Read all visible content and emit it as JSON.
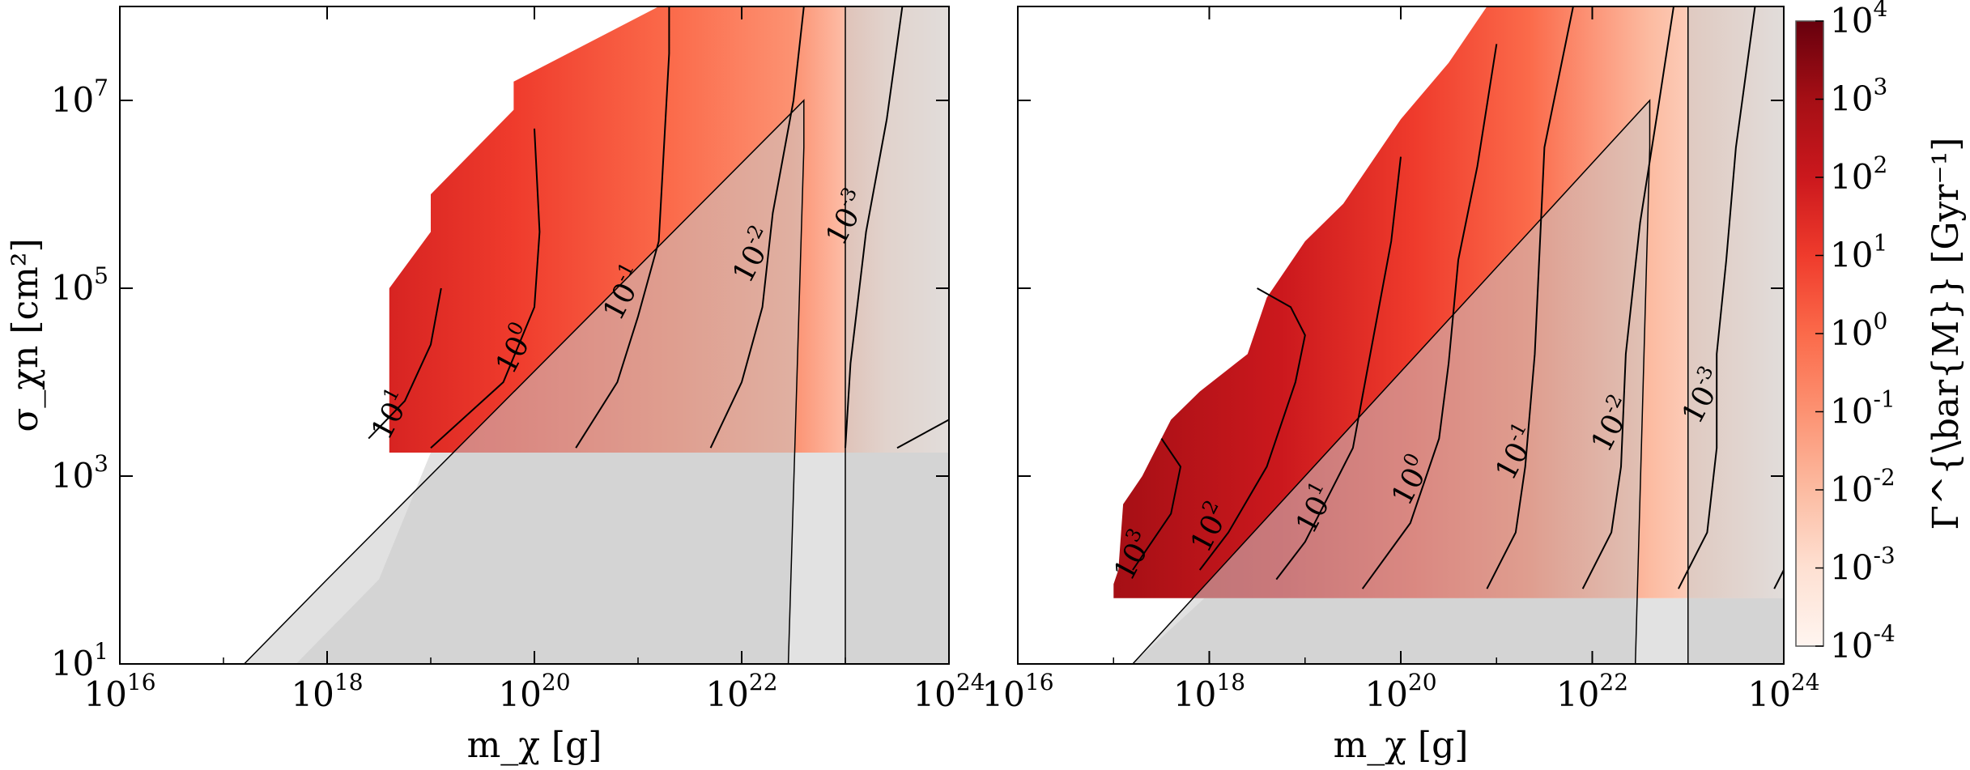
{
  "chart_data": [
    {
      "type": "heatmap",
      "panel": "left",
      "xlabel": "m_χ [g]",
      "ylabel": "σ_χn [cm²]",
      "x_scale": "log",
      "y_scale": "log",
      "xlim": [
        1e+16,
        1e+24
      ],
      "ylim": [
        10,
        100000000.0
      ],
      "x_ticks": [
        {
          "base": "10",
          "exp": "16"
        },
        {
          "base": "10",
          "exp": "18"
        },
        {
          "base": "10",
          "exp": "20"
        },
        {
          "base": "10",
          "exp": "22"
        },
        {
          "base": "10",
          "exp": "24"
        }
      ],
      "y_ticks": [
        {
          "base": "10",
          "exp": "1"
        },
        {
          "base": "10",
          "exp": "3"
        },
        {
          "base": "10",
          "exp": "5"
        },
        {
          "base": "10",
          "exp": "7"
        }
      ],
      "region_boundary": [
        [
          18.0,
          3.25
        ],
        [
          18.6,
          3.25
        ],
        [
          18.6,
          5.0
        ],
        [
          19.0,
          5.6
        ],
        [
          19.0,
          6.0
        ],
        [
          19.8,
          6.9
        ],
        [
          19.8,
          7.2
        ],
        [
          21.2,
          8.0
        ],
        [
          24.0,
          8.0
        ],
        [
          24.0,
          3.25
        ]
      ],
      "contours": [
        {
          "label_base": "10",
          "label_exp": "1",
          "points": [
            [
              18.4,
              3.4
            ],
            [
              18.75,
              3.8
            ],
            [
              19.0,
              4.4
            ],
            [
              19.1,
              5.0
            ]
          ],
          "label_at": [
            18.7,
            3.6
          ]
        },
        {
          "label_base": "10",
          "label_exp": "0",
          "points": [
            [
              19.0,
              3.3
            ],
            [
              19.7,
              4.0
            ],
            [
              20.0,
              4.8
            ],
            [
              20.05,
              5.6
            ],
            [
              20.0,
              6.7
            ]
          ],
          "label_at": [
            19.9,
            4.3
          ]
        },
        {
          "label_base": "10",
          "label_exp": "-1",
          "points": [
            [
              20.4,
              3.3
            ],
            [
              20.8,
              4.0
            ],
            [
              21.0,
              4.7
            ],
            [
              21.2,
              5.5
            ],
            [
              21.3,
              7.5
            ],
            [
              21.3,
              8.0
            ]
          ],
          "label_at": [
            20.95,
            4.9
          ]
        },
        {
          "label_base": "10",
          "label_exp": "-2",
          "points": [
            [
              21.7,
              3.3
            ],
            [
              22.0,
              4.0
            ],
            [
              22.2,
              4.8
            ],
            [
              22.3,
              5.8
            ],
            [
              22.5,
              7.0
            ],
            [
              22.6,
              8.0
            ]
          ],
          "label_at": [
            22.2,
            5.3
          ]
        },
        {
          "label_base": "10",
          "label_exp": "-3",
          "points": [
            [
              23.0,
              3.3
            ],
            [
              23.05,
              4.2
            ],
            [
              23.2,
              5.6
            ],
            [
              23.4,
              6.8
            ],
            [
              23.55,
              8.0
            ]
          ],
          "label_at": [
            23.1,
            5.7
          ]
        },
        {
          "points": [
            [
              23.5,
              3.3
            ],
            [
              24.0,
              3.6
            ]
          ]
        }
      ],
      "excluded_regions": [
        {
          "name": "constraint-band",
          "points": [
            [
              23.0,
              1.0
            ],
            [
              23.0,
              8.0
            ],
            [
              24.0,
              8.0
            ],
            [
              24.0,
              1.0
            ]
          ]
        },
        {
          "name": "constraint-wedge",
          "points": [
            [
              17.2,
              1.0
            ],
            [
              18.0,
              1.9
            ],
            [
              22.6,
              7.0
            ],
            [
              22.6,
              6.5
            ],
            [
              22.45,
              1.0
            ]
          ]
        },
        {
          "name": "constraint-floor",
          "points": [
            [
              17.7,
              1.0
            ],
            [
              18.5,
              1.9
            ],
            [
              19.0,
              3.25
            ],
            [
              24.0,
              3.25
            ],
            [
              24.0,
              1.0
            ]
          ]
        }
      ]
    },
    {
      "type": "heatmap",
      "panel": "right",
      "xlabel": "m_χ [g]",
      "x_scale": "log",
      "y_scale": "log",
      "xlim": [
        1e+16,
        1e+24
      ],
      "ylim": [
        10,
        100000000.0
      ],
      "x_ticks": [
        {
          "base": "10",
          "exp": "16"
        },
        {
          "base": "10",
          "exp": "18"
        },
        {
          "base": "10",
          "exp": "20"
        },
        {
          "base": "10",
          "exp": "22"
        },
        {
          "base": "10",
          "exp": "24"
        }
      ],
      "region_boundary": [
        [
          17.0,
          1.7
        ],
        [
          17.0,
          1.85
        ],
        [
          17.05,
          2.0
        ],
        [
          17.1,
          2.7
        ],
        [
          17.3,
          3.0
        ],
        [
          17.4,
          3.2
        ],
        [
          17.6,
          3.6
        ],
        [
          17.9,
          3.9
        ],
        [
          18.4,
          4.3
        ],
        [
          18.6,
          4.9
        ],
        [
          19.0,
          5.5
        ],
        [
          19.4,
          5.9
        ],
        [
          20.0,
          6.8
        ],
        [
          20.5,
          7.4
        ],
        [
          20.9,
          8.0
        ],
        [
          24.0,
          8.0
        ],
        [
          24.0,
          1.7
        ]
      ],
      "contours": [
        {
          "label_base": "10",
          "label_exp": "3",
          "points": [
            [
              17.2,
              2.0
            ],
            [
              17.6,
              2.6
            ],
            [
              17.7,
              3.1
            ],
            [
              17.5,
              3.4
            ]
          ],
          "label_at": [
            17.3,
            2.1
          ]
        },
        {
          "label_base": "10",
          "label_exp": "2",
          "points": [
            [
              17.9,
              2.0
            ],
            [
              18.2,
              2.4
            ],
            [
              18.6,
              3.1
            ],
            [
              18.9,
              4.0
            ],
            [
              19.0,
              4.5
            ],
            [
              18.85,
              4.8
            ],
            [
              18.5,
              5.0
            ]
          ],
          "label_at": [
            18.1,
            2.4
          ]
        },
        {
          "label_base": "10",
          "label_exp": "1",
          "points": [
            [
              18.7,
              1.9
            ],
            [
              19.0,
              2.3
            ],
            [
              19.5,
              3.3
            ],
            [
              19.7,
              4.4
            ],
            [
              19.9,
              5.5
            ],
            [
              20.0,
              6.4
            ]
          ],
          "label_at": [
            19.2,
            2.6
          ]
        },
        {
          "label_base": "10",
          "label_exp": "0",
          "points": [
            [
              19.6,
              1.8
            ],
            [
              20.1,
              2.5
            ],
            [
              20.4,
              3.4
            ],
            [
              20.5,
              4.2
            ],
            [
              20.6,
              5.3
            ],
            [
              20.8,
              6.3
            ],
            [
              21.0,
              7.6
            ]
          ],
          "label_at": [
            20.2,
            2.9
          ]
        },
        {
          "label_base": "10",
          "label_exp": "-1",
          "points": [
            [
              20.9,
              1.8
            ],
            [
              21.2,
              2.4
            ],
            [
              21.3,
              3.1
            ],
            [
              21.4,
              4.3
            ],
            [
              21.5,
              6.5
            ],
            [
              21.8,
              8.0
            ]
          ],
          "label_at": [
            21.3,
            3.2
          ]
        },
        {
          "label_base": "10",
          "label_exp": "-2",
          "points": [
            [
              21.9,
              1.8
            ],
            [
              22.2,
              2.4
            ],
            [
              22.3,
              3.1
            ],
            [
              22.35,
              4.3
            ],
            [
              22.5,
              5.7
            ],
            [
              22.7,
              7.0
            ],
            [
              22.85,
              8.0
            ]
          ],
          "label_at": [
            22.3,
            3.5
          ]
        },
        {
          "label_base": "10",
          "label_exp": "-3",
          "points": [
            [
              22.9,
              1.8
            ],
            [
              23.2,
              2.4
            ],
            [
              23.3,
              3.3
            ],
            [
              23.3,
              4.3
            ],
            [
              23.4,
              5.3
            ],
            [
              23.5,
              6.5
            ],
            [
              23.7,
              8.0
            ]
          ],
          "label_at": [
            23.25,
            3.8
          ]
        },
        {
          "points": [
            [
              23.9,
              1.8
            ],
            [
              24.0,
              2.0
            ]
          ]
        }
      ],
      "excluded_regions": [
        {
          "name": "constraint-band",
          "points": [
            [
              23.0,
              1.0
            ],
            [
              23.0,
              8.0
            ],
            [
              24.0,
              8.0
            ],
            [
              24.0,
              1.0
            ]
          ]
        },
        {
          "name": "constraint-wedge",
          "points": [
            [
              17.2,
              1.0
            ],
            [
              22.6,
              7.0
            ],
            [
              22.6,
              6.5
            ],
            [
              22.45,
              1.0
            ]
          ]
        },
        {
          "name": "constraint-floor",
          "points": [
            [
              17.2,
              1.0
            ],
            [
              17.95,
              1.7
            ],
            [
              24.0,
              1.7
            ],
            [
              24.0,
              1.0
            ]
          ]
        }
      ]
    }
  ],
  "colorbar": {
    "label": "Γ^{\\bar{M}} [Gyr⁻¹]",
    "scale": "log",
    "range": [
      0.0001,
      10000.0
    ],
    "colors": [
      "#fff5f0",
      "#fee0d2",
      "#fcbba1",
      "#fc9272",
      "#fb6a4a",
      "#ef3b2c",
      "#cb181d",
      "#a50f15",
      "#67000d"
    ],
    "ticks": [
      {
        "base": "10",
        "exp": "4"
      },
      {
        "base": "10",
        "exp": "3"
      },
      {
        "base": "10",
        "exp": "2"
      },
      {
        "base": "10",
        "exp": "1"
      },
      {
        "base": "10",
        "exp": "0"
      },
      {
        "base": "10",
        "exp": "-1"
      },
      {
        "base": "10",
        "exp": "-2"
      },
      {
        "base": "10",
        "exp": "-3"
      },
      {
        "base": "10",
        "exp": "-4"
      }
    ]
  },
  "excluded_fill": "#e2e2e2",
  "excluded_overlay": "rgba(200,200,200,0.55)"
}
